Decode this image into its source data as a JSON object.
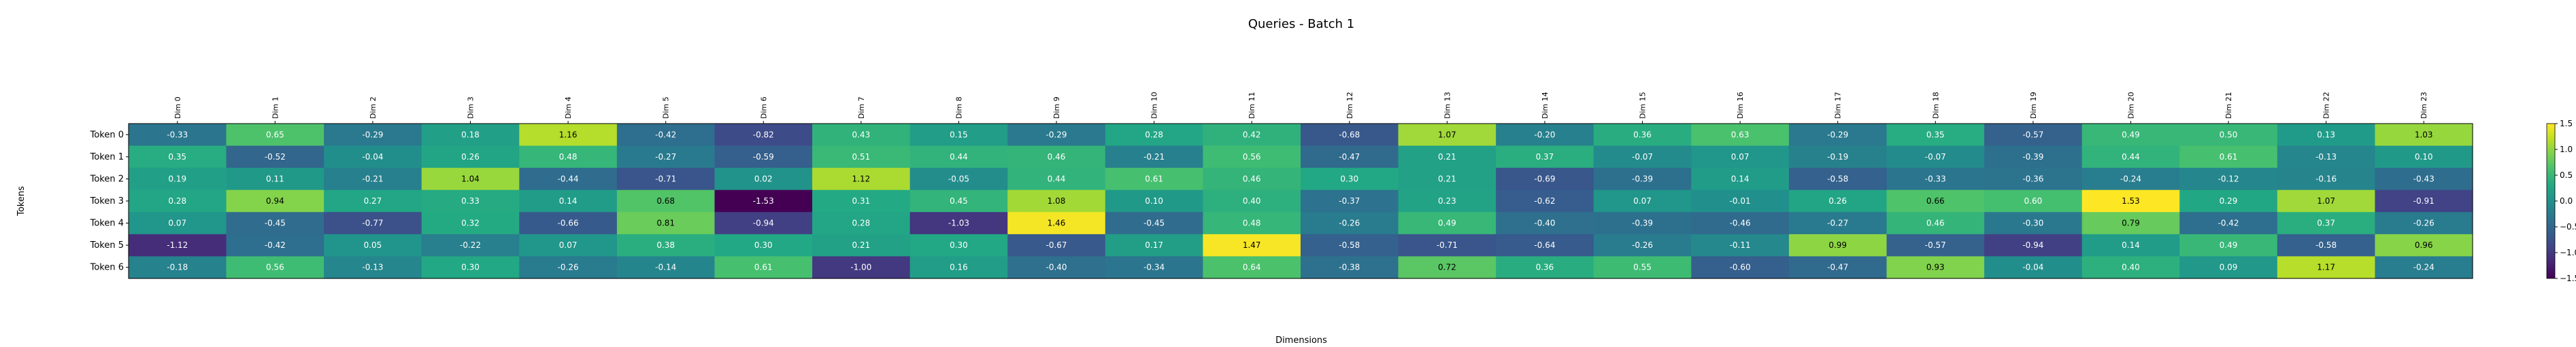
{
  "chart_data": {
    "type": "heatmap",
    "title": "Queries - Batch 1",
    "xlabel": "Dimensions",
    "ylabel": "Tokens",
    "x_labels": [
      "Dim 0",
      "Dim 1",
      "Dim 2",
      "Dim 3",
      "Dim 4",
      "Dim 5",
      "Dim 6",
      "Dim 7",
      "Dim 8",
      "Dim 9",
      "Dim 10",
      "Dim 11",
      "Dim 12",
      "Dim 13",
      "Dim 14",
      "Dim 15",
      "Dim 16",
      "Dim 17",
      "Dim 18",
      "Dim 19",
      "Dim 20",
      "Dim 21",
      "Dim 22",
      "Dim 23"
    ],
    "y_labels": [
      "Token 0",
      "Token 1",
      "Token 2",
      "Token 3",
      "Token 4",
      "Token 5",
      "Token 6"
    ],
    "values": [
      [
        -0.33,
        0.65,
        -0.29,
        0.18,
        1.16,
        -0.42,
        -0.82,
        0.43,
        0.15,
        -0.29,
        0.28,
        0.42,
        -0.68,
        1.07,
        -0.2,
        0.36,
        0.63,
        -0.29,
        0.35,
        -0.57,
        0.49,
        0.5,
        0.13,
        1.03
      ],
      [
        0.35,
        -0.52,
        -0.04,
        0.26,
        0.48,
        -0.27,
        -0.59,
        0.51,
        0.44,
        0.46,
        -0.21,
        0.56,
        -0.47,
        0.21,
        0.37,
        -0.07,
        0.07,
        -0.19,
        -0.07,
        -0.39,
        0.44,
        0.61,
        -0.13,
        0.1
      ],
      [
        0.19,
        0.11,
        -0.21,
        1.04,
        -0.44,
        -0.71,
        0.02,
        1.12,
        -0.05,
        0.44,
        0.61,
        0.46,
        0.3,
        0.21,
        -0.69,
        -0.39,
        0.14,
        -0.58,
        -0.33,
        -0.36,
        -0.24,
        -0.12,
        -0.16,
        -0.43
      ],
      [
        0.28,
        0.94,
        0.27,
        0.33,
        0.14,
        0.68,
        -1.53,
        0.31,
        0.45,
        1.08,
        0.1,
        0.4,
        -0.37,
        0.23,
        -0.62,
        0.07,
        -0.01,
        0.26,
        0.66,
        0.6,
        1.53,
        0.29,
        1.07,
        -0.91
      ],
      [
        0.07,
        -0.45,
        -0.77,
        0.32,
        -0.66,
        0.81,
        -0.94,
        0.28,
        -1.03,
        1.46,
        -0.45,
        0.48,
        -0.26,
        0.49,
        -0.4,
        -0.39,
        -0.46,
        -0.27,
        0.46,
        -0.3,
        0.79,
        -0.42,
        0.37,
        -0.26
      ],
      [
        -1.12,
        -0.42,
        0.05,
        -0.22,
        0.07,
        0.38,
        0.3,
        0.21,
        0.3,
        -0.67,
        0.17,
        1.47,
        -0.58,
        -0.71,
        -0.64,
        -0.26,
        -0.11,
        0.99,
        -0.57,
        -0.94,
        0.14,
        0.49,
        -0.58,
        0.96
      ],
      [
        -0.18,
        0.56,
        -0.13,
        0.3,
        -0.26,
        -0.14,
        0.61,
        -1.0,
        0.16,
        -0.4,
        -0.34,
        0.64,
        -0.38,
        0.72,
        0.36,
        0.55,
        -0.6,
        -0.47,
        0.93,
        -0.04,
        0.4,
        0.09,
        1.17,
        -0.24
      ]
    ],
    "vmin": -1.5,
    "vmax": 1.5,
    "colormap": "viridis",
    "colorbar_ticks": [
      -1.5,
      -1.0,
      -0.5,
      0.0,
      0.5,
      1.0,
      1.5
    ],
    "annotations": "cell values shown with two decimals"
  }
}
